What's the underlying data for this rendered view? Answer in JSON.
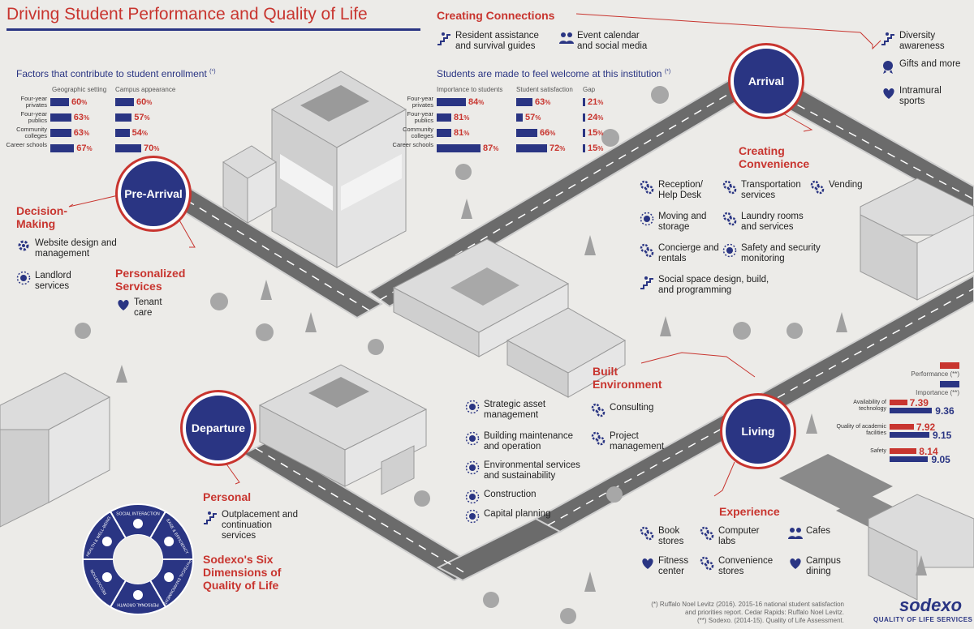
{
  "title": "Driving Student Performance and Quality of Life",
  "enrollment": {
    "subtitle": "Factors that contribute to student enrollment",
    "footnote_mark": "(*)",
    "columns": [
      "Geographic setting",
      "Campus appearance"
    ],
    "rows": [
      {
        "label": "Four-year privates",
        "geo": 60,
        "campus": 60
      },
      {
        "label": "Four-year publics",
        "geo": 63,
        "campus": 57
      },
      {
        "label": "Community colleges",
        "geo": 63,
        "campus": 54
      },
      {
        "label": "Career schools",
        "geo": 67,
        "campus": 70
      }
    ]
  },
  "welcome": {
    "subtitle": "Students are made to feel welcome at this institution",
    "footnote_mark": "(*)",
    "columns": [
      "Importance to students",
      "Student satisfaction",
      "Gap"
    ],
    "rows": [
      {
        "label": "Four-year privates",
        "importance": 84,
        "satisfaction": 63,
        "gap": 21
      },
      {
        "label": "Four-year publics",
        "importance": 81,
        "satisfaction": 57,
        "gap": 24
      },
      {
        "label": "Community colleges",
        "importance": 81,
        "satisfaction": 66,
        "gap": 15
      },
      {
        "label": "Career schools",
        "importance": 87,
        "satisfaction": 72,
        "gap": 15
      }
    ]
  },
  "stages": {
    "pre_arrival": "Pre-Arrival",
    "arrival": "Arrival",
    "living": "Living",
    "departure": "Departure"
  },
  "creating_connections": {
    "heading": "Creating Connections",
    "items": [
      "Resident assistance and survival guides",
      "Event calendar and social media"
    ]
  },
  "arrival_right": {
    "items": [
      "Diversity awareness",
      "Gifts and more",
      "Intramural sports"
    ]
  },
  "creating_convenience": {
    "heading": "Creating Convenience",
    "items": [
      "Reception/ Help Desk",
      "Transportation services",
      "Vending",
      "Moving and storage",
      "Laundry rooms and services",
      "Concierge and rentals",
      "Safety and security monitoring",
      "Social space design, build, and programming"
    ]
  },
  "decision_making": {
    "heading": "Decision-Making",
    "items": [
      "Website design and management",
      "Landlord services"
    ]
  },
  "personalized_services": {
    "heading": "Personalized Services",
    "items": [
      "Tenant care"
    ]
  },
  "built_environment": {
    "heading": "Built Environment",
    "items": [
      "Strategic asset management",
      "Building maintenance and operation",
      "Environmental services and sustainability",
      "Construction",
      "Capital planning",
      "Consulting",
      "Project management"
    ]
  },
  "living_metrics": {
    "legend_performance": "Performance",
    "legend_importance": "Importance",
    "legend_mark": "(**)",
    "colors": {
      "performance": "#c8352f",
      "importance": "#2a3583"
    },
    "rows": [
      {
        "label": "Availability of technology",
        "performance": 7.39,
        "importance": 9.36
      },
      {
        "label": "Quality of academic facilities",
        "performance": 7.92,
        "importance": 9.15
      },
      {
        "label": "Safety",
        "performance": 8.14,
        "importance": 9.05
      }
    ]
  },
  "experience": {
    "heading": "Experience",
    "items": [
      "Book stores",
      "Computer labs",
      "Cafes",
      "Fitness center",
      "Convenience stores",
      "Campus dining"
    ]
  },
  "personal": {
    "heading": "Personal",
    "items": [
      "Outplacement and continuation services"
    ]
  },
  "six_dimensions": {
    "heading": "Sodexo's Six Dimensions of Quality of Life",
    "segments": [
      "SOCIAL INTERACTION",
      "EASE & EFFICIENCY",
      "PHYSICAL ENVIRONMENT",
      "PERSONAL GROWTH",
      "RECOGNITION",
      "HEALTH & WELL-BEING"
    ]
  },
  "footnotes": [
    "(*) Ruffalo Noel Levitz (2016). 2015-16 national student satisfaction",
    "and priorities report. Cedar Rapids: Ruffalo Noel Levitz.",
    "(**) Sodexo. (2014-15). Quality of Life Assessment."
  ],
  "logo": {
    "name": "sodexo",
    "tagline": "QUALITY OF LIFE SERVICES"
  },
  "icons": {
    "gear": "gear-icon",
    "heart": "heart-hands-icon",
    "group": "people-icon",
    "stairs": "stairs-icon",
    "medal": "medal-icon",
    "sun": "sun-gear-icon"
  }
}
